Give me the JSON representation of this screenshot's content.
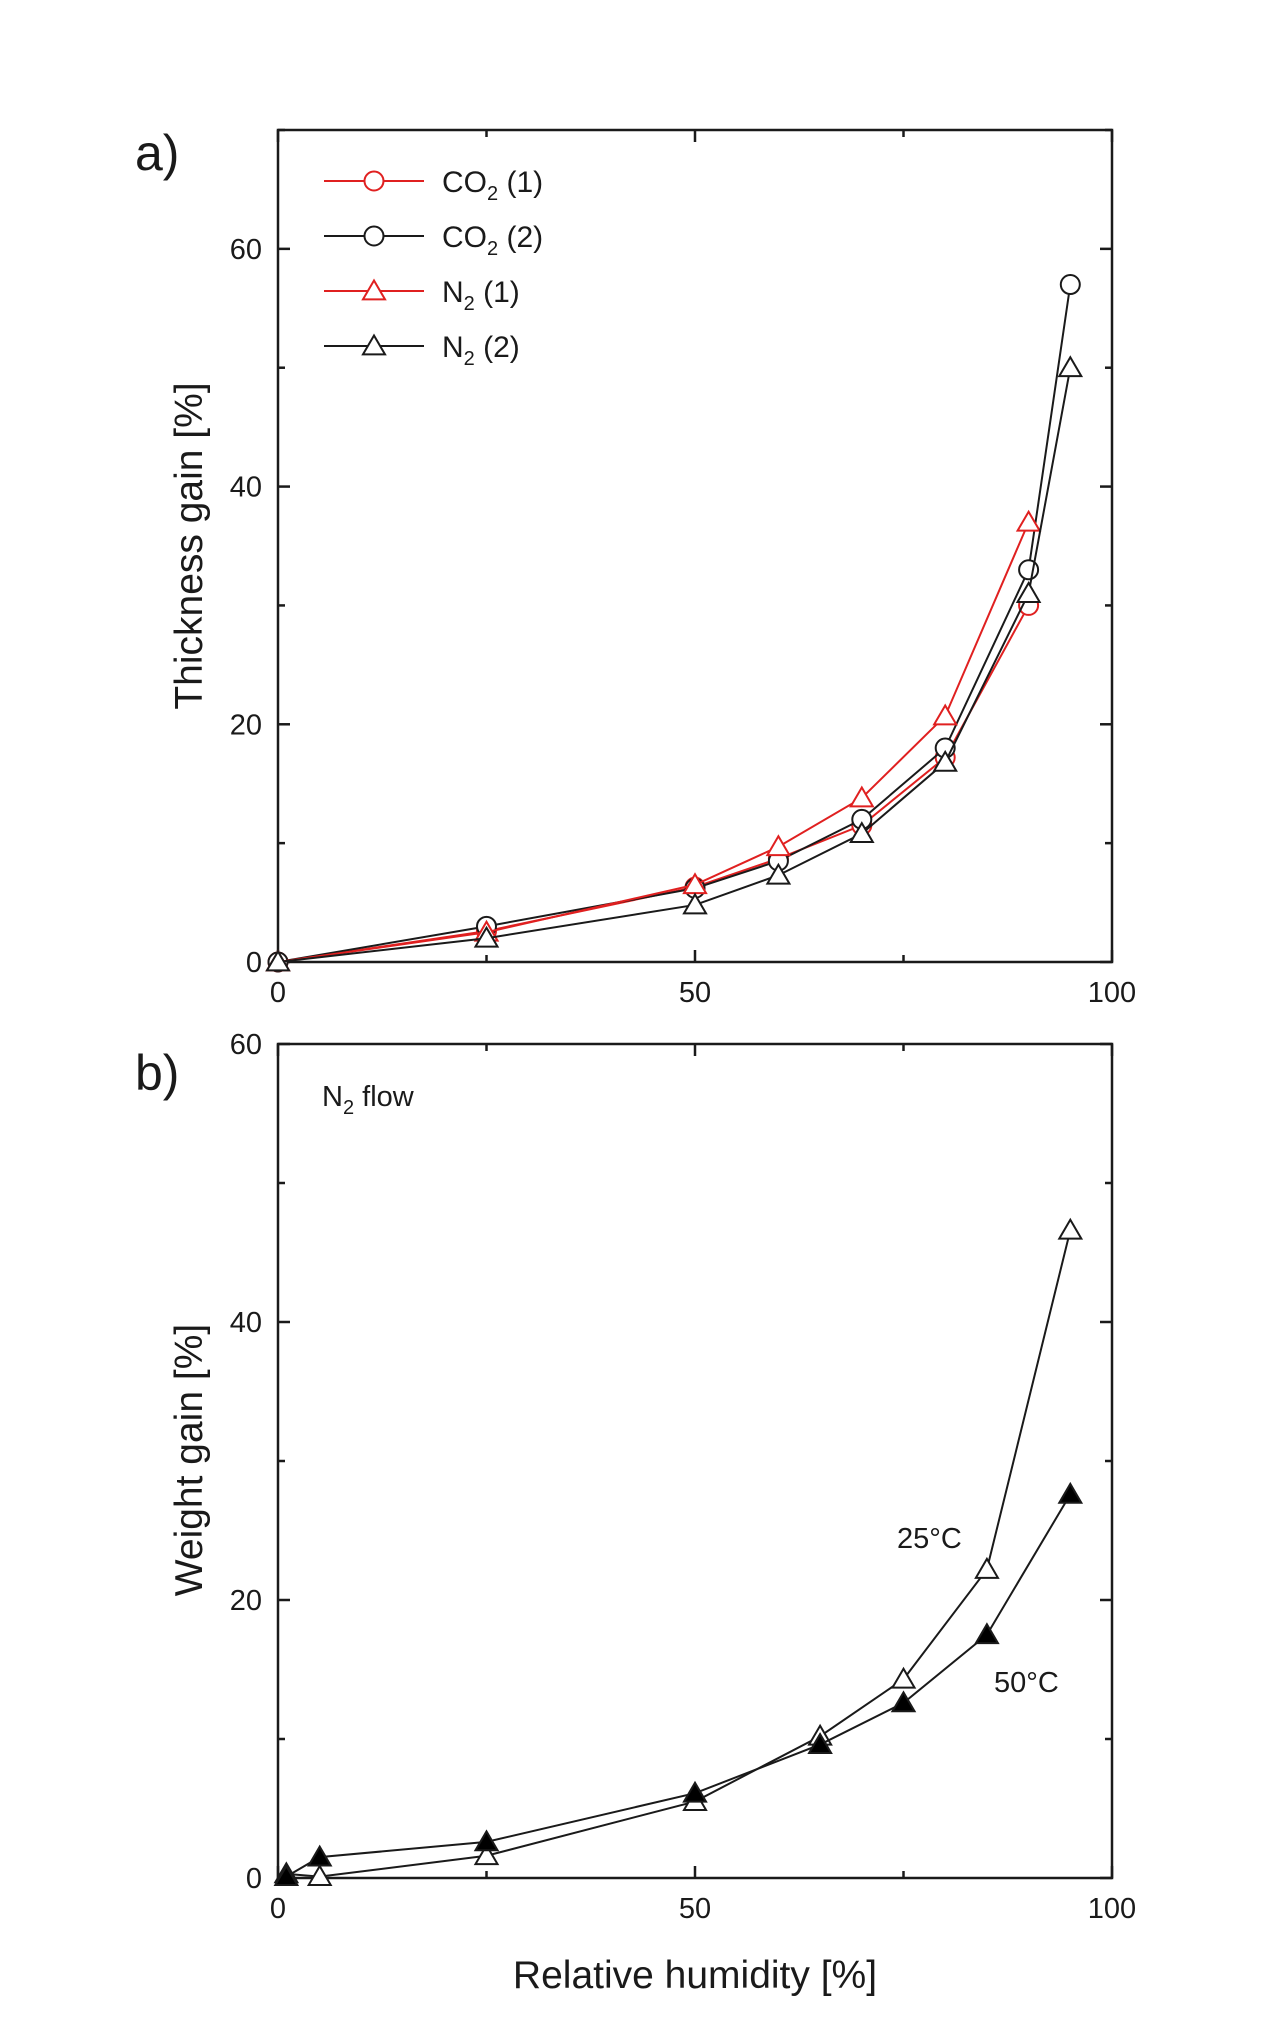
{
  "chart_data": [
    {
      "panel_label": "a)",
      "type": "line",
      "ylabel": "Thickness gain [%]",
      "xlabel": "",
      "xlim": [
        0,
        100
      ],
      "ylim": [
        0,
        70
      ],
      "xticks": [
        0,
        50,
        100
      ],
      "yticks": [
        0,
        20,
        40,
        60
      ],
      "legend_placement": "top-left",
      "series": [
        {
          "name": "CO2 (1)",
          "legend": {
            "base": "CO",
            "sub": "2",
            "suffix": " (1)"
          },
          "color": "#e02020",
          "marker": "circle-open",
          "points": [
            [
              0,
              0
            ],
            [
              25,
              2.6
            ],
            [
              50,
              6.3
            ],
            [
              60,
              8.7
            ],
            [
              70,
              11.5
            ],
            [
              80,
              17.2
            ],
            [
              90,
              30
            ]
          ]
        },
        {
          "name": "CO2 (2)",
          "legend": {
            "base": "CO",
            "sub": "2",
            "suffix": " (2)"
          },
          "color": "#1a1a1a",
          "marker": "circle-open",
          "points": [
            [
              0,
              0
            ],
            [
              25,
              3
            ],
            [
              50,
              6.2
            ],
            [
              60,
              8.5
            ],
            [
              70,
              12
            ],
            [
              80,
              18
            ],
            [
              90,
              33
            ],
            [
              95,
              57
            ]
          ]
        },
        {
          "name": "N2 (1)",
          "legend": {
            "base": "N",
            "sub": "2",
            "suffix": " (1)"
          },
          "color": "#e02020",
          "marker": "triangle-open",
          "points": [
            [
              0,
              0
            ],
            [
              25,
              2.5
            ],
            [
              50,
              6.5
            ],
            [
              60,
              9.7
            ],
            [
              70,
              13.8
            ],
            [
              80,
              20.7
            ],
            [
              90,
              37
            ]
          ]
        },
        {
          "name": "N2 (2)",
          "legend": {
            "base": "N",
            "sub": "2",
            "suffix": " (2)"
          },
          "color": "#1a1a1a",
          "marker": "triangle-open",
          "points": [
            [
              0,
              0
            ],
            [
              25,
              2
            ],
            [
              50,
              4.8
            ],
            [
              60,
              7.3
            ],
            [
              70,
              10.8
            ],
            [
              80,
              16.8
            ],
            [
              90,
              31
            ],
            [
              95,
              50
            ]
          ]
        }
      ]
    },
    {
      "panel_label": "b)",
      "type": "line",
      "ylabel": "Weight gain [%]",
      "xlabel": "Relative humidity [%]",
      "xlim": [
        0,
        100
      ],
      "ylim": [
        0,
        60
      ],
      "xticks": [
        0,
        50,
        100
      ],
      "yticks": [
        0,
        20,
        40,
        60
      ],
      "annotation": {
        "base": "N",
        "sub": "2",
        "suffix": " flow"
      },
      "series": [
        {
          "name": "25°C",
          "color": "#1a1a1a",
          "marker": "triangle-open",
          "label": "25°C",
          "points": [
            [
              1,
              0.3
            ],
            [
              5,
              0.1
            ],
            [
              25,
              1.6
            ],
            [
              50,
              5.5
            ],
            [
              65,
              10.2
            ],
            [
              75,
              14.3
            ],
            [
              85,
              22.2
            ],
            [
              95,
              46.6
            ]
          ]
        },
        {
          "name": "50°C",
          "color": "#1a1a1a",
          "marker": "triangle-filled",
          "label": "50°C",
          "points": [
            [
              1,
              0.1
            ],
            [
              5,
              1.5
            ],
            [
              25,
              2.6
            ],
            [
              50,
              6.1
            ],
            [
              65,
              9.6
            ],
            [
              75,
              12.6
            ],
            [
              85,
              17.5
            ],
            [
              95,
              27.6
            ]
          ]
        }
      ]
    }
  ]
}
